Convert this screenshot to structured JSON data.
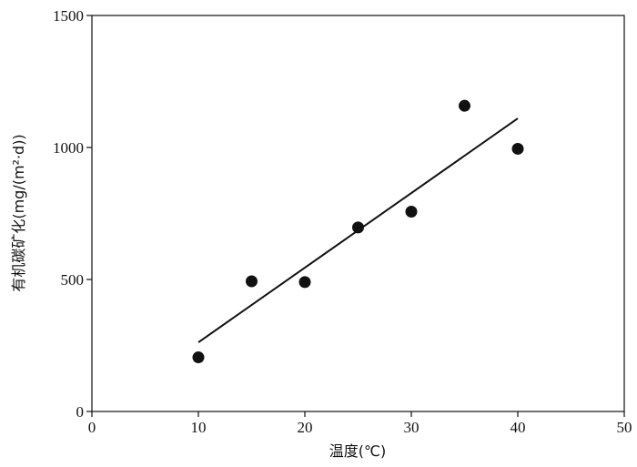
{
  "chart_data": {
    "type": "scatter",
    "xlabel": "温度(℃)",
    "ylabel": "有机碳矿化(mg/(m²·d))",
    "xlim": [
      0,
      50
    ],
    "ylim": [
      0,
      1500
    ],
    "xticks": [
      "0",
      "10",
      "20",
      "30",
      "40",
      "50"
    ],
    "yticks": [
      "0",
      "500",
      "1000",
      "1500"
    ],
    "grid": false,
    "points": [
      {
        "x": 10,
        "y": 205
      },
      {
        "x": 15,
        "y": 493
      },
      {
        "x": 20,
        "y": 490
      },
      {
        "x": 25,
        "y": 697
      },
      {
        "x": 30,
        "y": 757
      },
      {
        "x": 35,
        "y": 1158
      },
      {
        "x": 40,
        "y": 995
      }
    ],
    "trendline": {
      "x": [
        10,
        40
      ],
      "y": [
        262,
        1110
      ]
    },
    "colors": {
      "marks": "#111111",
      "axis": "#111111"
    }
  }
}
